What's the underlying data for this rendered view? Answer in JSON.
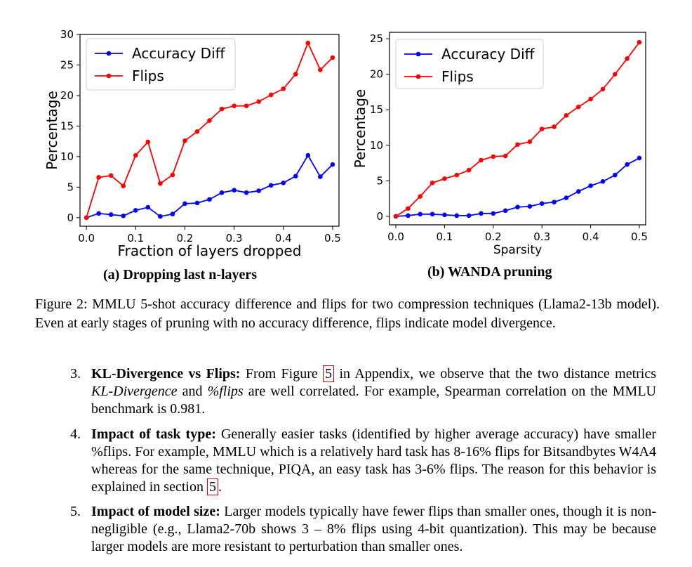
{
  "chart_data": [
    {
      "type": "line",
      "xlabel": "Fraction of layers dropped",
      "ylabel": "Percentage",
      "xlim": [
        -0.013,
        0.513
      ],
      "ylim": [
        -1.4,
        30
      ],
      "xticks": [
        0.0,
        0.1,
        0.2,
        0.3,
        0.4,
        0.5
      ],
      "xtick_labels": [
        "0.0",
        "0.1",
        "0.2",
        "0.3",
        "0.4",
        "0.5"
      ],
      "yticks": [
        0,
        5,
        10,
        15,
        20,
        25,
        30
      ],
      "ytick_labels": [
        "0",
        "5",
        "10",
        "15",
        "20",
        "25",
        "30"
      ],
      "legend_position": "top-left",
      "x": [
        0.0,
        0.025,
        0.05,
        0.075,
        0.1,
        0.125,
        0.15,
        0.175,
        0.2,
        0.225,
        0.25,
        0.275,
        0.3,
        0.325,
        0.35,
        0.375,
        0.4,
        0.425,
        0.45,
        0.475,
        0.5
      ],
      "series": [
        {
          "name": "Accuracy Diff",
          "color": "#0000ff",
          "values": [
            0.0,
            0.7,
            0.5,
            0.3,
            1.2,
            1.7,
            0.2,
            0.6,
            2.3,
            2.4,
            3.0,
            4.1,
            4.5,
            4.1,
            4.4,
            5.3,
            5.7,
            6.8,
            10.2,
            6.7,
            8.7
          ]
        },
        {
          "name": "Flips",
          "color": "#ff0000",
          "values": [
            0.0,
            6.6,
            6.9,
            5.2,
            10.2,
            12.4,
            5.6,
            7.0,
            12.6,
            14.1,
            15.9,
            17.8,
            18.3,
            18.3,
            19.0,
            20.1,
            21.1,
            23.5,
            28.6,
            24.2,
            26.2
          ]
        }
      ]
    },
    {
      "type": "line",
      "xlabel": "Sparsity",
      "ylabel": "Percentage",
      "xlim": [
        -0.013,
        0.513
      ],
      "ylim": [
        -1.2,
        25.9
      ],
      "xticks": [
        0.0,
        0.1,
        0.2,
        0.3,
        0.4,
        0.5
      ],
      "xtick_labels": [
        "0.0",
        "0.1",
        "0.2",
        "0.3",
        "0.4",
        "0.5"
      ],
      "yticks": [
        0,
        5,
        10,
        15,
        20,
        25
      ],
      "ytick_labels": [
        "0",
        "5",
        "10",
        "15",
        "20",
        "25"
      ],
      "legend_position": "top-left",
      "x": [
        0.0,
        0.025,
        0.05,
        0.075,
        0.1,
        0.125,
        0.15,
        0.175,
        0.2,
        0.225,
        0.25,
        0.275,
        0.3,
        0.325,
        0.35,
        0.375,
        0.4,
        0.425,
        0.45,
        0.475,
        0.5
      ],
      "series": [
        {
          "name": "Accuracy Diff",
          "color": "#0000ff",
          "values": [
            0.0,
            0.1,
            0.3,
            0.3,
            0.2,
            0.1,
            0.1,
            0.4,
            0.4,
            0.8,
            1.3,
            1.4,
            1.8,
            2.0,
            2.6,
            3.5,
            4.3,
            4.9,
            5.8,
            7.3,
            8.2
          ]
        },
        {
          "name": "Flips",
          "color": "#ff0000",
          "values": [
            0.0,
            1.1,
            2.8,
            4.7,
            5.3,
            5.8,
            6.5,
            7.9,
            8.4,
            8.5,
            10.1,
            10.5,
            12.3,
            12.6,
            14.2,
            15.4,
            16.5,
            17.9,
            20.0,
            22.2,
            24.5
          ]
        }
      ]
    }
  ],
  "subcaptions": {
    "a": "(a) Dropping last n-layers",
    "b": "(b) WANDA pruning"
  },
  "figure_caption": "Figure 2: MMLU 5-shot accuracy difference and flips for two compression techniques (Llama2-13b model). Even at early stages of pruning with no accuracy difference, flips indicate model divergence.",
  "items": [
    {
      "number": "3.",
      "title": "KL-Divergence vs Flips:",
      "t1": " From Figure ",
      "ref": "5",
      "t2": " in Appendix, we observe that the two distance metrics ",
      "em1": "KL-Divergence",
      "t3": " and ",
      "em2": "%flips",
      "t4": " are well correlated. For example, Spearman correlation on the MMLU benchmark is 0.981."
    },
    {
      "number": "4.",
      "title": "Impact of task type:",
      "t1": " Generally easier tasks (identified by higher average accuracy) have smaller %flips. For example, MMLU which is a relatively hard task has 8-16% flips for Bitsandbytes W4A4 whereas for the same technique, PIQA, an easy task has 3-6% flips. The reason for this behavior is explained in section ",
      "ref": "5",
      "t2": "."
    },
    {
      "number": "5.",
      "title": "Impact of model size:",
      "t1": " Larger models typically have fewer flips than smaller ones, though it is non-negligible (e.g., Llama2-70b shows 3 – 8% flips using 4-bit quantization). This may be because larger models are more resistant to perturbation than smaller ones."
    }
  ]
}
